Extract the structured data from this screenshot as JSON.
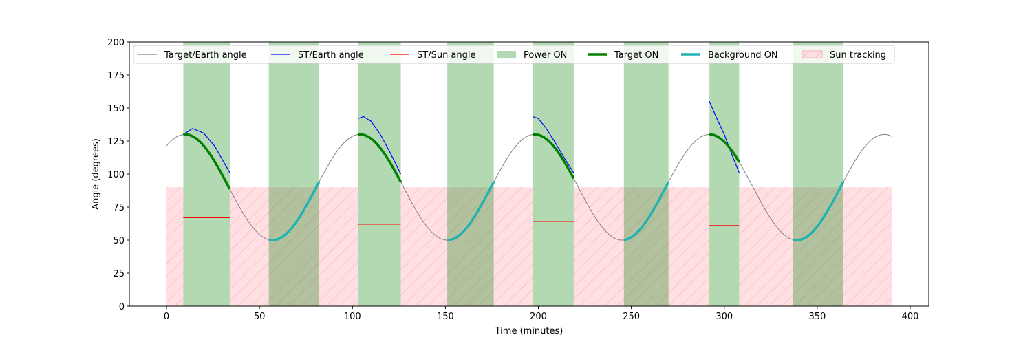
{
  "chart_data": {
    "type": "line",
    "xlabel": "Time (minutes)",
    "ylabel": "Angle (degrees)",
    "xlim": [
      -20,
      410
    ],
    "ylim": [
      0,
      200
    ],
    "x_ticks": [
      0,
      50,
      100,
      150,
      200,
      250,
      300,
      350,
      400
    ],
    "y_ticks": [
      0,
      25,
      50,
      75,
      100,
      125,
      150,
      175,
      200
    ],
    "grid": false,
    "legend_position": "top",
    "colors": {
      "target_earth": "#808080",
      "st_earth": "#0000ff",
      "st_sun": "#ff0000",
      "power_on": "#b2d8b2",
      "target_on": "#008000",
      "background_on": "#22b2b2",
      "sun_tracking_fill": "#ffdfe2",
      "sun_tracking_hatch": "#f4b4b8"
    },
    "legend": [
      {
        "key": "target_earth",
        "label": "Target/Earth angle",
        "style": "line-thin"
      },
      {
        "key": "st_earth",
        "label": "ST/Earth angle",
        "style": "line-thin"
      },
      {
        "key": "st_sun",
        "label": "ST/Sun angle",
        "style": "line-thin"
      },
      {
        "key": "power_on",
        "label": "Power ON",
        "style": "patch"
      },
      {
        "key": "target_on",
        "label": "Target ON",
        "style": "line-thick"
      },
      {
        "key": "background_on",
        "label": "Background ON",
        "style": "line-thick"
      },
      {
        "key": "sun_tracking",
        "label": "Sun tracking",
        "style": "hatch"
      }
    ],
    "target_earth_curve": {
      "x_range": [
        0,
        390
      ],
      "mean": 90,
      "amplitude": 40,
      "period": 94,
      "peak_time": 10
    },
    "sun_tracking_intervals": [
      {
        "x0": 0,
        "x1": 9,
        "height": 90
      },
      {
        "x0": 34,
        "x1": 103,
        "height": 90
      },
      {
        "x0": 126,
        "x1": 197,
        "height": 90
      },
      {
        "x0": 219,
        "x1": 292,
        "height": 90
      },
      {
        "x0": 308,
        "x1": 390,
        "height": 90
      }
    ],
    "power_on_intervals": [
      {
        "x0": 9,
        "x1": 34
      },
      {
        "x0": 55,
        "x1": 82
      },
      {
        "x0": 103,
        "x1": 126
      },
      {
        "x0": 151,
        "x1": 176
      },
      {
        "x0": 197,
        "x1": 219
      },
      {
        "x0": 246,
        "x1": 270
      },
      {
        "x0": 292,
        "x1": 308
      },
      {
        "x0": 337,
        "x1": 364
      }
    ],
    "target_on_intervals": [
      {
        "x0": 9,
        "x1": 34
      },
      {
        "x0": 103,
        "x1": 126
      },
      {
        "x0": 197,
        "x1": 219
      },
      {
        "x0": 292,
        "x1": 308
      }
    ],
    "background_on_intervals": [
      {
        "x0": 55,
        "x1": 82
      },
      {
        "x0": 151,
        "x1": 176
      },
      {
        "x0": 246,
        "x1": 270
      },
      {
        "x0": 337,
        "x1": 364
      }
    ],
    "st_earth_segments": [
      {
        "x": [
          9,
          14,
          20,
          26,
          34
        ],
        "y": [
          130,
          134.5,
          131,
          121,
          101
        ]
      },
      {
        "x": [
          103,
          106,
          110,
          115,
          120,
          126
        ],
        "y": [
          142,
          143.5,
          140,
          130,
          117,
          100
        ]
      },
      {
        "x": [
          197,
          200,
          204,
          209,
          214,
          219
        ],
        "y": [
          143.5,
          142,
          135,
          124,
          112,
          101
        ]
      },
      {
        "x": [
          292,
          296,
          300,
          304,
          308
        ],
        "y": [
          155,
          142,
          130,
          115,
          101
        ]
      }
    ],
    "st_sun_segments": [
      {
        "x0": 9,
        "x1": 34,
        "y": 67
      },
      {
        "x0": 103,
        "x1": 126,
        "y": 62
      },
      {
        "x0": 197,
        "x1": 219,
        "y": 64
      },
      {
        "x0": 292,
        "x1": 308,
        "y": 61
      }
    ]
  }
}
